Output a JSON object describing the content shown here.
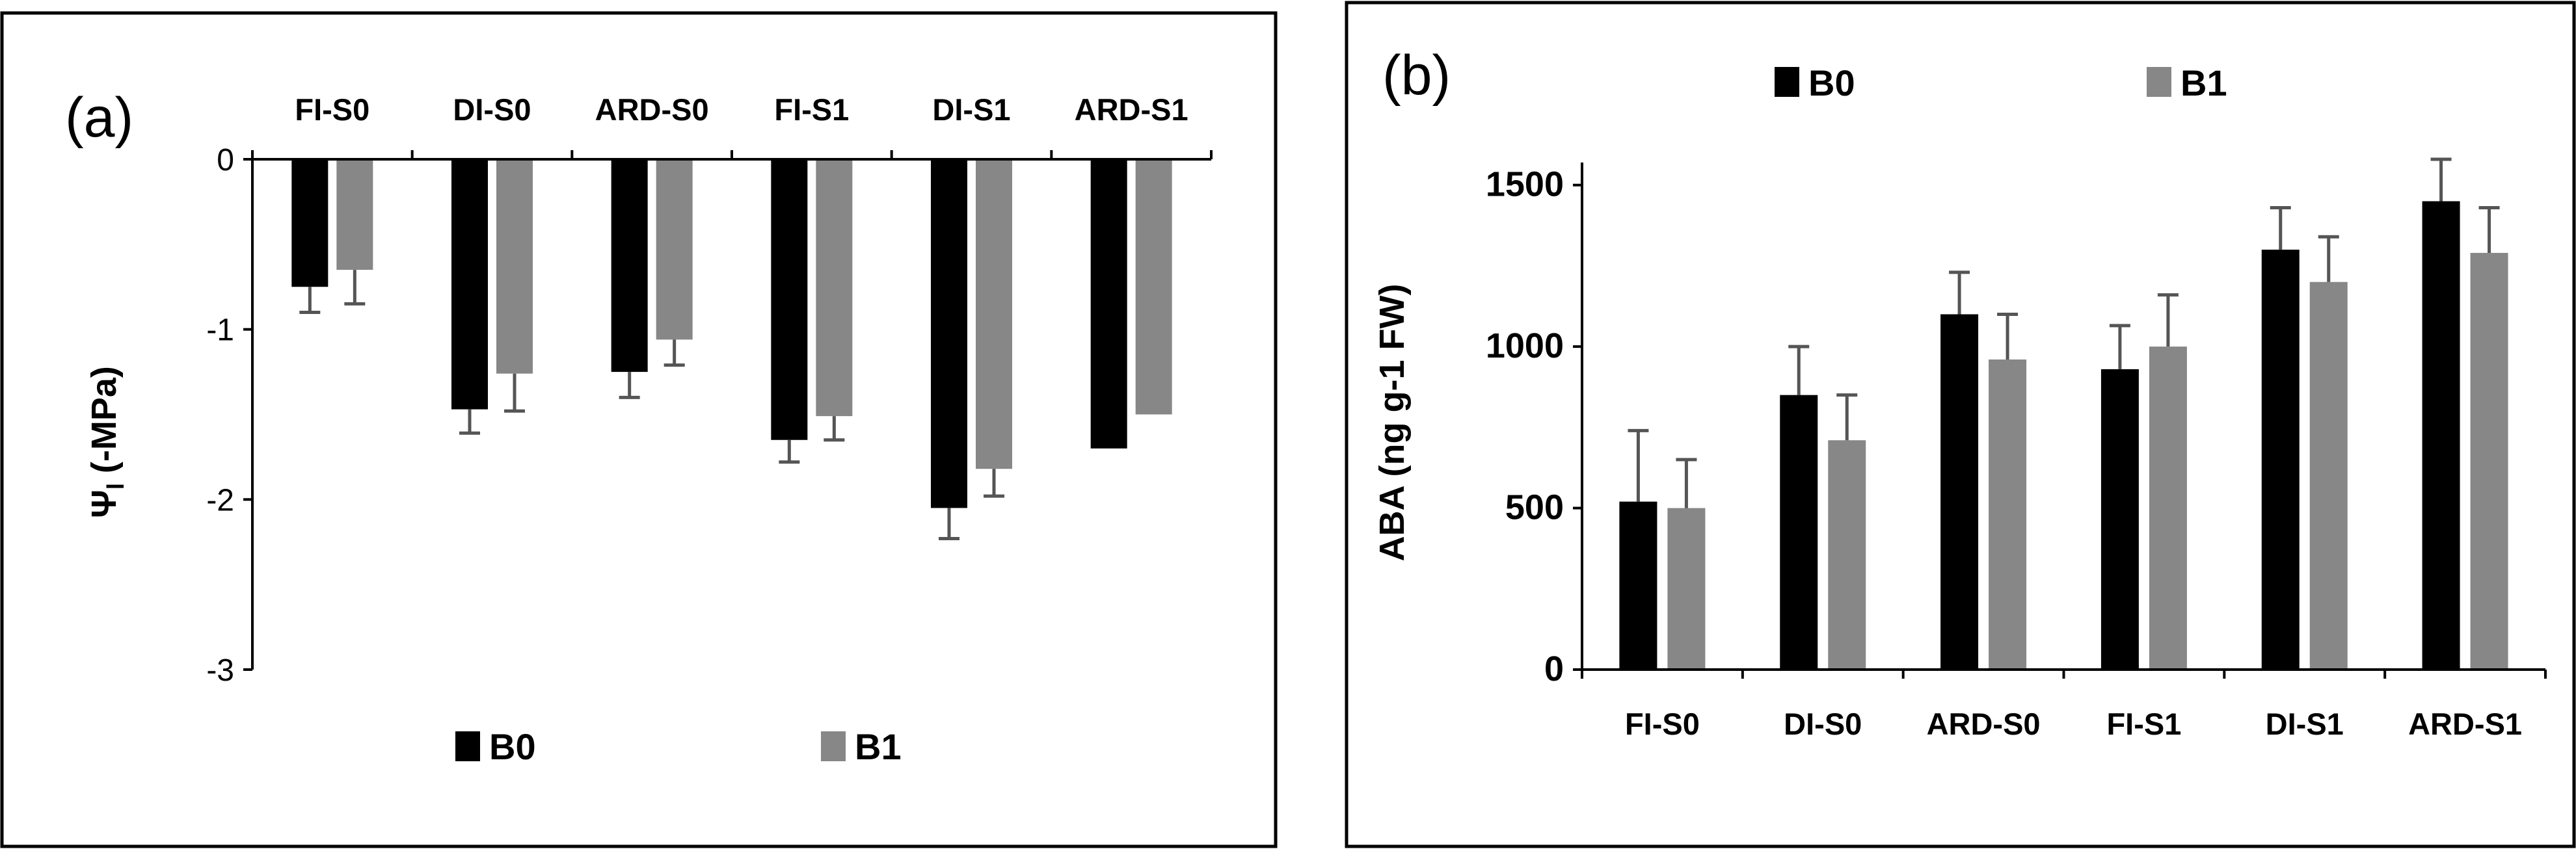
{
  "colors": {
    "B0": "#000000",
    "B1": "#878787",
    "error": "#555555"
  },
  "chart_data": [
    {
      "type": "bar",
      "panel": "(a)",
      "ylabel": "Ψl (-MPa)",
      "ylabel_main": "Ψ",
      "ylabel_sub": "l",
      "ylabel_rest": " (-MPa)",
      "ylim": [
        -3,
        0
      ],
      "yticks": [
        0,
        -1,
        -2,
        -3
      ],
      "categories": [
        "FI-S0",
        "DI-S0",
        "ARD-S0",
        "FI-S1",
        "DI-S1",
        "ARD-S1"
      ],
      "category_axis_position": "top",
      "series": [
        {
          "name": "B0",
          "values": [
            -0.75,
            -1.47,
            -1.25,
            -1.65,
            -2.05,
            -1.7
          ],
          "errors": [
            0.15,
            0.14,
            0.15,
            0.13,
            0.18,
            0
          ]
        },
        {
          "name": "B1",
          "values": [
            -0.65,
            -1.26,
            -1.06,
            -1.51,
            -1.82,
            -1.5
          ],
          "errors": [
            0.2,
            0.22,
            0.15,
            0.14,
            0.16,
            0
          ]
        }
      ],
      "legend_position": "bottom",
      "grid": false
    },
    {
      "type": "bar",
      "panel": "(b)",
      "ylabel": "ABA (ng g-1 FW)",
      "ylim": [
        0,
        1600
      ],
      "yticks": [
        0,
        500,
        1000,
        1500
      ],
      "categories": [
        "FI-S0",
        "DI-S0",
        "ARD-S0",
        "FI-S1",
        "DI-S1",
        "ARD-S1"
      ],
      "category_axis_position": "bottom",
      "series": [
        {
          "name": "B0",
          "values": [
            520,
            850,
            1100,
            930,
            1300,
            1450
          ],
          "errors": [
            220,
            150,
            130,
            135,
            130,
            130
          ]
        },
        {
          "name": "B1",
          "values": [
            500,
            710,
            960,
            1000,
            1200,
            1290
          ],
          "errors": [
            150,
            140,
            140,
            160,
            140,
            140
          ]
        }
      ],
      "legend_position": "top",
      "grid": false
    }
  ]
}
